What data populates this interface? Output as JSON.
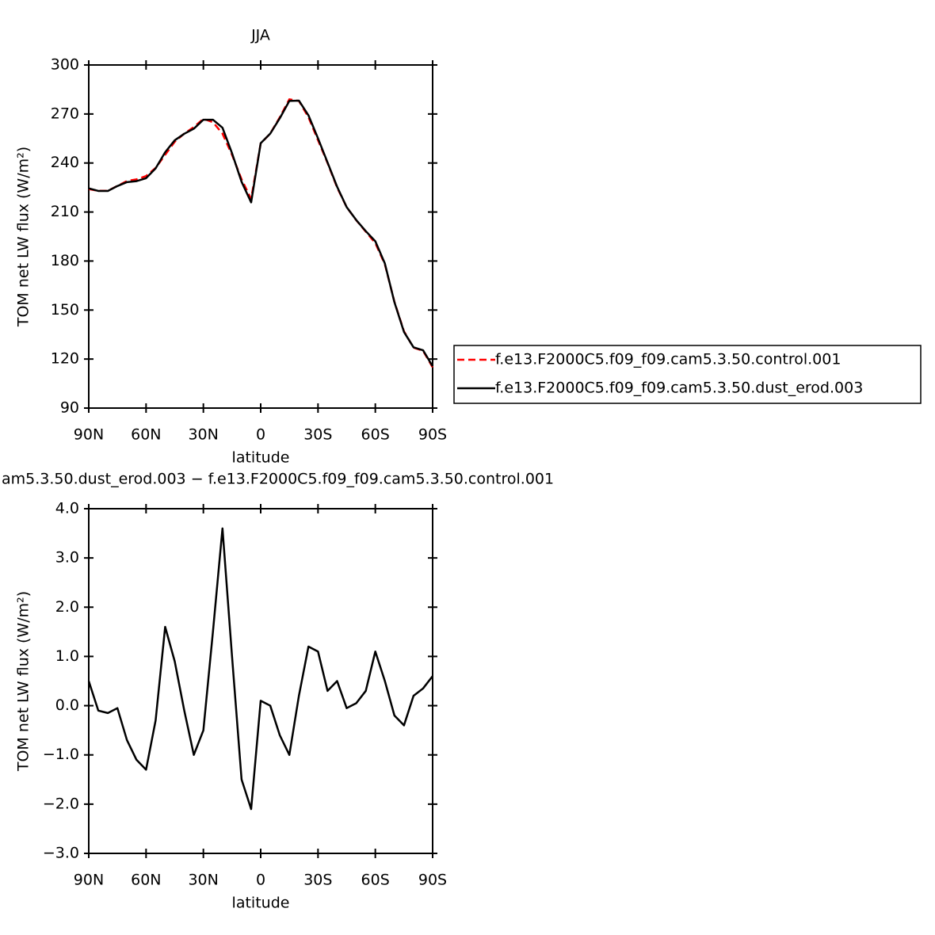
{
  "chart_data": [
    {
      "type": "line",
      "title": "JJA",
      "x_label": "latitude",
      "y_label": "TOM net LW flux (W/m²)",
      "x": [
        90,
        85,
        80,
        75,
        70,
        65,
        60,
        55,
        50,
        45,
        40,
        35,
        30,
        25,
        20,
        15,
        10,
        5,
        0,
        -5,
        -10,
        -15,
        -20,
        -25,
        -30,
        -35,
        -40,
        -45,
        -50,
        -55,
        -60,
        -65,
        -70,
        -75,
        -80,
        -85,
        -90
      ],
      "series": [
        {
          "name": "f.e13.F2000C5.f09_f09.cam5.3.50.control.001",
          "color": "#ff0000",
          "dash": true,
          "values": [
            224,
            223,
            223,
            226,
            229,
            230,
            232,
            237,
            245,
            253,
            258,
            262,
            267,
            265,
            258,
            245,
            230,
            218,
            252,
            258,
            268,
            279,
            278,
            268,
            254,
            240,
            225,
            213,
            205,
            198,
            191,
            178,
            155,
            137,
            127,
            125,
            115
          ]
        },
        {
          "name": "f.e13.F2000C5.f09_f09.cam5.3.50.dust_erod.003",
          "color": "#000000",
          "dash": false,
          "values": [
            224.5,
            222.9,
            222.9,
            225.9,
            228.3,
            228.9,
            230.7,
            236.7,
            246.6,
            253.9,
            257.9,
            261,
            266.5,
            266.5,
            261.6,
            246,
            228.5,
            215.9,
            252.1,
            258,
            267.4,
            278,
            278.2,
            269.2,
            255.1,
            240.3,
            225.5,
            213,
            205.1,
            198.3,
            192.1,
            178.5,
            154.8,
            136.6,
            127.2,
            125.4,
            115.6
          ]
        }
      ],
      "xlim": [
        90,
        -90
      ],
      "xticks": [
        {
          "value": 90,
          "label": "90N"
        },
        {
          "value": 60,
          "label": "60N"
        },
        {
          "value": 30,
          "label": "30N"
        },
        0,
        {
          "value": -30,
          "label": "30S"
        },
        {
          "value": -60,
          "label": "60S"
        },
        {
          "value": -90,
          "label": "90S"
        }
      ],
      "ylim": [
        90,
        300
      ],
      "yticks": [
        90,
        120,
        150,
        180,
        210,
        240,
        270,
        300
      ],
      "legend": "right"
    },
    {
      "type": "line",
      "title": "am5.3.50.dust_erod.003 − f.e13.F2000C5.f09_f09.cam5.3.50.control.001",
      "x_label": "latitude",
      "y_label": "TOM net LW flux (W/m²)",
      "x": [
        90,
        85,
        80,
        75,
        70,
        65,
        60,
        55,
        50,
        45,
        40,
        35,
        30,
        25,
        20,
        15,
        10,
        5,
        0,
        -5,
        -10,
        -15,
        -20,
        -25,
        -30,
        -35,
        -40,
        -45,
        -50,
        -55,
        -60,
        -65,
        -70,
        -75,
        -80,
        -85,
        -90
      ],
      "color": "#000000",
      "values": [
        0.5,
        -0.1,
        -0.15,
        -0.05,
        -0.7,
        -1.1,
        -1.3,
        -0.3,
        1.6,
        0.9,
        -0.1,
        -1.0,
        -0.5,
        1.5,
        3.6,
        1.0,
        -1.5,
        -2.1,
        0.1,
        0.0,
        -0.6,
        -1.0,
        0.2,
        1.2,
        1.1,
        0.3,
        0.5,
        -0.05,
        0.05,
        0.3,
        1.1,
        0.5,
        -0.2,
        -0.4,
        0.2,
        0.35,
        0.6
      ],
      "xlim": [
        90,
        -90
      ],
      "xticks": [
        {
          "value": 90,
          "label": "90N"
        },
        {
          "value": 60,
          "label": "60N"
        },
        {
          "value": 30,
          "label": "30N"
        },
        0,
        {
          "value": -30,
          "label": "30S"
        },
        {
          "value": -60,
          "label": "60S"
        },
        {
          "value": -90,
          "label": "90S"
        }
      ],
      "ylim": [
        -3,
        4
      ],
      "yticks": [
        {
          "value": -3,
          "label": "−3.0"
        },
        {
          "value": -2,
          "label": "−2.0"
        },
        {
          "value": -1,
          "label": "−1.0"
        },
        {
          "value": 0,
          "label": "0.0"
        },
        {
          "value": 1,
          "label": "1.0"
        },
        {
          "value": 2,
          "label": "2.0"
        },
        {
          "value": 3,
          "label": "3.0"
        },
        {
          "value": 4,
          "label": "4.0"
        }
      ]
    }
  ]
}
